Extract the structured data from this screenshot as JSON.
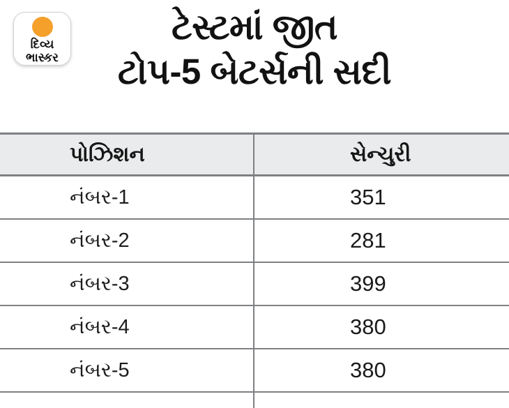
{
  "brand": {
    "logo_line1": "દિવ્ય",
    "logo_line2": "ભાસ્કર",
    "sun_color": "#f5a02b"
  },
  "headline": {
    "line1": "ટેસ્ટમાં જીત",
    "line2": "ટોપ-5 બેટર્સની સદી"
  },
  "table": {
    "columns": [
      "પોઝિશન",
      "સેન્ચુરી"
    ],
    "rows": [
      {
        "position": "નંબર-1",
        "centuries": "351"
      },
      {
        "position": "નંબર-2",
        "centuries": "281"
      },
      {
        "position": "નંબર-3",
        "centuries": "399"
      },
      {
        "position": "નંબર-4",
        "centuries": "380"
      },
      {
        "position": "નંબર-5",
        "centuries": "380"
      }
    ]
  },
  "colors": {
    "header_row_bg": "#eaebec",
    "grid_line": "#7e8083",
    "text": "#141414",
    "background": "#ffffff"
  },
  "chart_data": {
    "type": "table",
    "title": "ટેસ્ટમાં જીત ટોપ-5 બેટર્સની સદી",
    "columns": [
      "પોઝિશન",
      "સેન્ચુરી"
    ],
    "categories": [
      "નંબર-1",
      "નંબર-2",
      "નંબર-3",
      "નંબર-4",
      "નંબર-5"
    ],
    "values": [
      351,
      281,
      399,
      380,
      380
    ]
  }
}
